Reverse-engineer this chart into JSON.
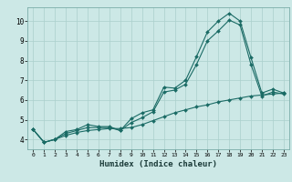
{
  "xlabel": "Humidex (Indice chaleur)",
  "bg_color": "#cce8e6",
  "grid_color": "#aacfcc",
  "line_color": "#1a6b65",
  "xlim": [
    -0.5,
    23.5
  ],
  "ylim": [
    3.5,
    10.7
  ],
  "xticks": [
    0,
    1,
    2,
    3,
    4,
    5,
    6,
    7,
    8,
    9,
    10,
    11,
    12,
    13,
    14,
    15,
    16,
    17,
    18,
    19,
    20,
    21,
    22,
    23
  ],
  "yticks": [
    4,
    5,
    6,
    7,
    8,
    9,
    10
  ],
  "line1_x": [
    0,
    1,
    2,
    3,
    4,
    5,
    6,
    7,
    8,
    9,
    10,
    11,
    12,
    13,
    14,
    15,
    16,
    17,
    18,
    19,
    20,
    21,
    22,
    23
  ],
  "line1_y": [
    4.5,
    3.85,
    4.0,
    4.4,
    4.5,
    4.75,
    4.65,
    4.65,
    4.45,
    5.05,
    5.35,
    5.5,
    6.65,
    6.6,
    7.0,
    8.2,
    9.45,
    10.0,
    10.4,
    10.0,
    8.15,
    6.35,
    6.55,
    6.35
  ],
  "line2_x": [
    0,
    1,
    2,
    3,
    4,
    5,
    6,
    7,
    8,
    9,
    10,
    11,
    12,
    13,
    14,
    15,
    16,
    17,
    18,
    19,
    20,
    21,
    22,
    23
  ],
  "line2_y": [
    4.5,
    3.85,
    4.0,
    4.3,
    4.45,
    4.6,
    4.6,
    4.6,
    4.45,
    4.85,
    5.1,
    5.4,
    6.4,
    6.5,
    6.8,
    7.8,
    9.0,
    9.5,
    10.05,
    9.8,
    7.8,
    6.2,
    6.4,
    6.3
  ],
  "line3_x": [
    0,
    1,
    2,
    3,
    4,
    5,
    6,
    7,
    8,
    9,
    10,
    11,
    12,
    13,
    14,
    15,
    16,
    17,
    18,
    19,
    20,
    21,
    22,
    23
  ],
  "line3_y": [
    4.5,
    3.85,
    4.0,
    4.2,
    4.35,
    4.45,
    4.5,
    4.55,
    4.55,
    4.6,
    4.75,
    4.95,
    5.15,
    5.35,
    5.5,
    5.65,
    5.75,
    5.9,
    6.0,
    6.1,
    6.2,
    6.25,
    6.3,
    6.35
  ]
}
